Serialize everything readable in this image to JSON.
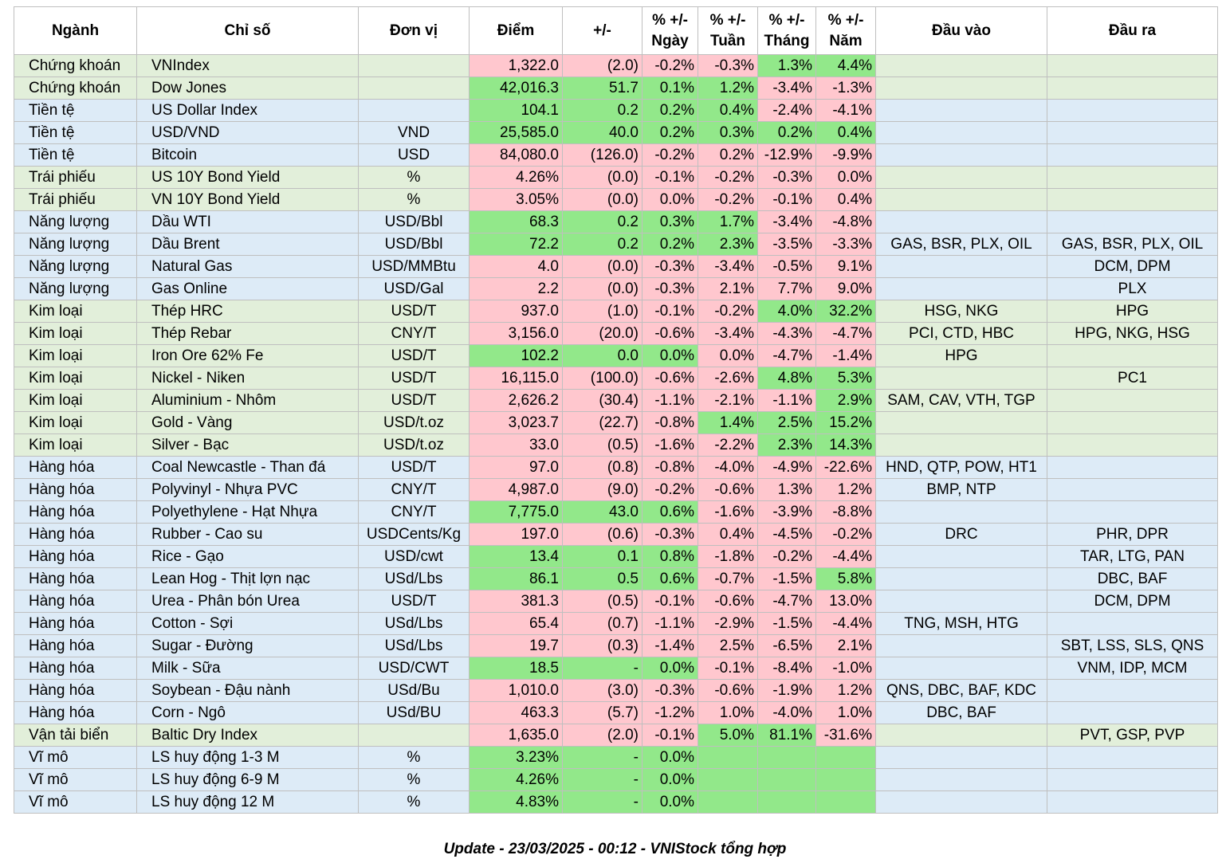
{
  "headers": {
    "nganh": "Ngành",
    "chiso": "Chỉ số",
    "donvi": "Đơn vị",
    "diem": "Điểm",
    "change": "+/-",
    "ngay": "% +/- Ngày",
    "tuan": "% +/- Tuần",
    "thang": "% +/- Tháng",
    "nam": "% +/- Năm",
    "dauvao": "Đầu vào",
    "daura": "Đầu ra"
  },
  "colors": {
    "green_row": "#e2efda",
    "blue_row": "#ddebf7",
    "positive_cell": "#92e88a",
    "negative_cell": "#ffc7ce"
  },
  "rows": [
    {
      "nganh": "Chứng khoán",
      "chiso": "VNIndex",
      "donvi": "",
      "diem": "1,322.0",
      "change": "(2.0)",
      "ngay": "-0.2%",
      "tuan": "-0.3%",
      "thang": "1.3%",
      "nam": "4.4%",
      "dauvao": "",
      "daura": "",
      "row": "g",
      "c": [
        "neg",
        "neg",
        "neg",
        "neg",
        "pos",
        "pos"
      ]
    },
    {
      "nganh": "Chứng khoán",
      "chiso": "Dow Jones",
      "donvi": "",
      "diem": "42,016.3",
      "change": "51.7",
      "ngay": "0.1%",
      "tuan": "1.2%",
      "thang": "-3.4%",
      "nam": "-1.3%",
      "dauvao": "",
      "daura": "",
      "row": "g",
      "c": [
        "pos",
        "pos",
        "pos",
        "pos",
        "neg",
        "neg"
      ]
    },
    {
      "nganh": "Tiền tệ",
      "chiso": "US Dollar Index",
      "donvi": "",
      "diem": "104.1",
      "change": "0.2",
      "ngay": "0.2%",
      "tuan": "0.4%",
      "thang": "-2.4%",
      "nam": "-4.1%",
      "dauvao": "",
      "daura": "",
      "row": "b",
      "c": [
        "pos",
        "pos",
        "pos",
        "pos",
        "neg",
        "neg"
      ]
    },
    {
      "nganh": "Tiền tệ",
      "chiso": "USD/VND",
      "donvi": "VND",
      "diem": "25,585.0",
      "change": "40.0",
      "ngay": "0.2%",
      "tuan": "0.3%",
      "thang": "0.2%",
      "nam": "0.4%",
      "dauvao": "",
      "daura": "",
      "row": "b",
      "c": [
        "pos",
        "pos",
        "pos",
        "pos",
        "pos",
        "pos"
      ]
    },
    {
      "nganh": "Tiền tệ",
      "chiso": "Bitcoin",
      "donvi": "USD",
      "diem": "84,080.0",
      "change": "(126.0)",
      "ngay": "-0.2%",
      "tuan": "0.2%",
      "thang": "-12.9%",
      "nam": "-9.9%",
      "dauvao": "",
      "daura": "",
      "row": "b",
      "c": [
        "neg",
        "neg",
        "neg",
        "neg",
        "neg",
        "neg"
      ]
    },
    {
      "nganh": "Trái phiếu",
      "chiso": "US 10Y Bond Yield",
      "donvi": "%",
      "diem": "4.26%",
      "change": "(0.0)",
      "ngay": "-0.1%",
      "tuan": "-0.2%",
      "thang": "-0.3%",
      "nam": "0.0%",
      "dauvao": "",
      "daura": "",
      "row": "g",
      "c": [
        "neg",
        "neg",
        "neg",
        "neg",
        "neg",
        "neg"
      ]
    },
    {
      "nganh": "Trái phiếu",
      "chiso": "VN 10Y Bond Yield",
      "donvi": "%",
      "diem": "3.05%",
      "change": "(0.0)",
      "ngay": "0.0%",
      "tuan": "-0.2%",
      "thang": "-0.1%",
      "nam": "0.4%",
      "dauvao": "",
      "daura": "",
      "row": "g",
      "c": [
        "neg",
        "neg",
        "neg",
        "neg",
        "neg",
        "neg"
      ]
    },
    {
      "nganh": "Năng lượng",
      "chiso": "Dầu WTI",
      "donvi": "USD/Bbl",
      "diem": "68.3",
      "change": "0.2",
      "ngay": "0.3%",
      "tuan": "1.7%",
      "thang": "-3.4%",
      "nam": "-4.8%",
      "dauvao": "",
      "daura": "",
      "row": "b",
      "c": [
        "pos",
        "pos",
        "pos",
        "pos",
        "neg",
        "neg"
      ]
    },
    {
      "nganh": "Năng lượng",
      "chiso": "Dầu Brent",
      "donvi": "USD/Bbl",
      "diem": "72.2",
      "change": "0.2",
      "ngay": "0.2%",
      "tuan": "2.3%",
      "thang": "-3.5%",
      "nam": "-3.3%",
      "dauvao": "GAS, BSR, PLX, OIL",
      "daura": "GAS, BSR, PLX, OIL",
      "row": "b",
      "c": [
        "pos",
        "pos",
        "pos",
        "pos",
        "neg",
        "neg"
      ]
    },
    {
      "nganh": "Năng lượng",
      "chiso": "Natural Gas",
      "donvi": "USD/MMBtu",
      "diem": "4.0",
      "change": "(0.0)",
      "ngay": "-0.3%",
      "tuan": "-3.4%",
      "thang": "-0.5%",
      "nam": "9.1%",
      "dauvao": "",
      "daura": "DCM, DPM",
      "row": "b",
      "c": [
        "neg",
        "neg",
        "neg",
        "neg",
        "neg",
        "neg"
      ]
    },
    {
      "nganh": "Năng lượng",
      "chiso": "Gas Online",
      "donvi": "USD/Gal",
      "diem": "2.2",
      "change": "(0.0)",
      "ngay": "-0.3%",
      "tuan": "2.1%",
      "thang": "7.7%",
      "nam": "9.0%",
      "dauvao": "",
      "daura": "PLX",
      "row": "b",
      "c": [
        "neg",
        "neg",
        "neg",
        "neg",
        "neg",
        "neg"
      ]
    },
    {
      "nganh": "Kim loại",
      "chiso": "Thép HRC",
      "donvi": "USD/T",
      "diem": "937.0",
      "change": "(1.0)",
      "ngay": "-0.1%",
      "tuan": "-0.2%",
      "thang": "4.0%",
      "nam": "32.2%",
      "dauvao": "HSG, NKG",
      "daura": "HPG",
      "row": "g",
      "c": [
        "neg",
        "neg",
        "neg",
        "neg",
        "pos",
        "pos"
      ]
    },
    {
      "nganh": "Kim loại",
      "chiso": "Thép Rebar",
      "donvi": "CNY/T",
      "diem": "3,156.0",
      "change": "(20.0)",
      "ngay": "-0.6%",
      "tuan": "-3.4%",
      "thang": "-4.3%",
      "nam": "-4.7%",
      "dauvao": "PCI, CTD, HBC",
      "daura": "HPG, NKG, HSG",
      "row": "g",
      "c": [
        "neg",
        "neg",
        "neg",
        "neg",
        "neg",
        "neg"
      ]
    },
    {
      "nganh": "Kim loại",
      "chiso": "Iron Ore 62% Fe",
      "donvi": "USD/T",
      "diem": "102.2",
      "change": "0.0",
      "ngay": "0.0%",
      "tuan": "0.0%",
      "thang": "-4.7%",
      "nam": "-1.4%",
      "dauvao": "HPG",
      "daura": "",
      "row": "g",
      "c": [
        "pos",
        "pos",
        "pos",
        "neg",
        "neg",
        "neg"
      ]
    },
    {
      "nganh": "Kim loại",
      "chiso": "Nickel - Niken",
      "donvi": "USD/T",
      "diem": "16,115.0",
      "change": "(100.0)",
      "ngay": "-0.6%",
      "tuan": "-2.6%",
      "thang": "4.8%",
      "nam": "5.3%",
      "dauvao": "",
      "daura": "PC1",
      "row": "g",
      "c": [
        "neg",
        "neg",
        "neg",
        "neg",
        "pos",
        "pos"
      ]
    },
    {
      "nganh": "Kim loại",
      "chiso": "Aluminium - Nhôm",
      "donvi": "USD/T",
      "diem": "2,626.2",
      "change": "(30.4)",
      "ngay": "-1.1%",
      "tuan": "-2.1%",
      "thang": "-1.1%",
      "nam": "2.9%",
      "dauvao": "SAM, CAV, VTH, TGP",
      "daura": "",
      "row": "g",
      "c": [
        "neg",
        "neg",
        "neg",
        "neg",
        "neg",
        "pos"
      ]
    },
    {
      "nganh": "Kim loại",
      "chiso": "Gold - Vàng",
      "donvi": "USD/t.oz",
      "diem": "3,023.7",
      "change": "(22.7)",
      "ngay": "-0.8%",
      "tuan": "1.4%",
      "thang": "2.5%",
      "nam": "15.2%",
      "dauvao": "",
      "daura": "",
      "row": "g",
      "c": [
        "neg",
        "neg",
        "neg",
        "pos",
        "pos",
        "pos"
      ]
    },
    {
      "nganh": "Kim loại",
      "chiso": "Silver - Bạc",
      "donvi": "USD/t.oz",
      "diem": "33.0",
      "change": "(0.5)",
      "ngay": "-1.6%",
      "tuan": "-2.2%",
      "thang": "2.3%",
      "nam": "14.3%",
      "dauvao": "",
      "daura": "",
      "row": "g",
      "c": [
        "neg",
        "neg",
        "neg",
        "neg",
        "pos",
        "pos"
      ]
    },
    {
      "nganh": "Hàng hóa",
      "chiso": "Coal Newcastle - Than đá",
      "donvi": "USD/T",
      "diem": "97.0",
      "change": "(0.8)",
      "ngay": "-0.8%",
      "tuan": "-4.0%",
      "thang": "-4.9%",
      "nam": "-22.6%",
      "dauvao": "HND, QTP, POW, HT1",
      "daura": "",
      "row": "b",
      "c": [
        "neg",
        "neg",
        "neg",
        "neg",
        "neg",
        "neg"
      ]
    },
    {
      "nganh": "Hàng hóa",
      "chiso": "Polyvinyl - Nhựa PVC",
      "donvi": "CNY/T",
      "diem": "4,987.0",
      "change": "(9.0)",
      "ngay": "-0.2%",
      "tuan": "-0.6%",
      "thang": "1.3%",
      "nam": "1.2%",
      "dauvao": "BMP, NTP",
      "daura": "",
      "row": "b",
      "c": [
        "neg",
        "neg",
        "neg",
        "neg",
        "neg",
        "neg"
      ]
    },
    {
      "nganh": "Hàng hóa",
      "chiso": "Polyethylene - Hạt Nhựa",
      "donvi": "CNY/T",
      "diem": "7,775.0",
      "change": "43.0",
      "ngay": "0.6%",
      "tuan": "-1.6%",
      "thang": "-3.9%",
      "nam": "-8.8%",
      "dauvao": "",
      "daura": "",
      "row": "b",
      "c": [
        "pos",
        "pos",
        "pos",
        "neg",
        "neg",
        "neg"
      ]
    },
    {
      "nganh": "Hàng hóa",
      "chiso": "Rubber - Cao su",
      "donvi": "USDCents/Kg",
      "diem": "197.0",
      "change": "(0.6)",
      "ngay": "-0.3%",
      "tuan": "0.4%",
      "thang": "-4.5%",
      "nam": "-0.2%",
      "dauvao": "DRC",
      "daura": "PHR, DPR",
      "row": "b",
      "c": [
        "neg",
        "neg",
        "neg",
        "neg",
        "neg",
        "neg"
      ]
    },
    {
      "nganh": "Hàng hóa",
      "chiso": "Rice - Gạo",
      "donvi": "USD/cwt",
      "diem": "13.4",
      "change": "0.1",
      "ngay": "0.8%",
      "tuan": "-1.8%",
      "thang": "-0.2%",
      "nam": "-4.4%",
      "dauvao": "",
      "daura": "TAR, LTG, PAN",
      "row": "b",
      "c": [
        "pos",
        "pos",
        "pos",
        "neg",
        "neg",
        "neg"
      ]
    },
    {
      "nganh": "Hàng hóa",
      "chiso": "Lean Hog - Thịt lợn nạc",
      "donvi": "USd/Lbs",
      "diem": "86.1",
      "change": "0.5",
      "ngay": "0.6%",
      "tuan": "-0.7%",
      "thang": "-1.5%",
      "nam": "5.8%",
      "dauvao": "",
      "daura": "DBC, BAF",
      "row": "b",
      "c": [
        "pos",
        "pos",
        "pos",
        "neg",
        "neg",
        "pos"
      ]
    },
    {
      "nganh": "Hàng hóa",
      "chiso": "Urea - Phân bón Urea",
      "donvi": "USD/T",
      "diem": "381.3",
      "change": "(0.5)",
      "ngay": "-0.1%",
      "tuan": "-0.6%",
      "thang": "-4.7%",
      "nam": "13.0%",
      "dauvao": "",
      "daura": "DCM, DPM",
      "row": "b",
      "c": [
        "neg",
        "neg",
        "neg",
        "neg",
        "neg",
        "neg"
      ]
    },
    {
      "nganh": "Hàng hóa",
      "chiso": "Cotton - Sợi",
      "donvi": "USd/Lbs",
      "diem": "65.4",
      "change": "(0.7)",
      "ngay": "-1.1%",
      "tuan": "-2.9%",
      "thang": "-1.5%",
      "nam": "-4.4%",
      "dauvao": "TNG, MSH, HTG",
      "daura": "",
      "row": "b",
      "c": [
        "neg",
        "neg",
        "neg",
        "neg",
        "neg",
        "neg"
      ]
    },
    {
      "nganh": "Hàng hóa",
      "chiso": "Sugar - Đường",
      "donvi": "USd/Lbs",
      "diem": "19.7",
      "change": "(0.3)",
      "ngay": "-1.4%",
      "tuan": "2.5%",
      "thang": "-6.5%",
      "nam": "2.1%",
      "dauvao": "",
      "daura": "SBT, LSS, SLS, QNS",
      "row": "b",
      "c": [
        "neg",
        "neg",
        "neg",
        "neg",
        "neg",
        "neg"
      ]
    },
    {
      "nganh": "Hàng hóa",
      "chiso": "Milk - Sữa",
      "donvi": "USD/CWT",
      "diem": "18.5",
      "change": "-",
      "ngay": "0.0%",
      "tuan": "-0.1%",
      "thang": "-8.4%",
      "nam": "-1.0%",
      "dauvao": "",
      "daura": "VNM, IDP, MCM",
      "row": "b",
      "c": [
        "pos",
        "pos",
        "pos",
        "neg",
        "neg",
        "neg"
      ]
    },
    {
      "nganh": "Hàng hóa",
      "chiso": "Soybean - Đậu nành",
      "donvi": "USd/Bu",
      "diem": "1,010.0",
      "change": "(3.0)",
      "ngay": "-0.3%",
      "tuan": "-0.6%",
      "thang": "-1.9%",
      "nam": "1.2%",
      "dauvao": "QNS, DBC, BAF, KDC",
      "daura": "",
      "row": "b",
      "c": [
        "neg",
        "neg",
        "neg",
        "neg",
        "neg",
        "neg"
      ]
    },
    {
      "nganh": "Hàng hóa",
      "chiso": "Corn - Ngô",
      "donvi": "USd/BU",
      "diem": "463.3",
      "change": "(5.7)",
      "ngay": "-1.2%",
      "tuan": "1.0%",
      "thang": "-4.0%",
      "nam": "1.0%",
      "dauvao": "DBC, BAF",
      "daura": "",
      "row": "b",
      "c": [
        "neg",
        "neg",
        "neg",
        "neg",
        "neg",
        "neg"
      ]
    },
    {
      "nganh": "Vận tải biển",
      "chiso": "Baltic Dry Index",
      "donvi": "",
      "diem": "1,635.0",
      "change": "(2.0)",
      "ngay": "-0.1%",
      "tuan": "5.0%",
      "thang": "81.1%",
      "nam": "-31.6%",
      "dauvao": "",
      "daura": "PVT, GSP, PVP",
      "row": "g",
      "c": [
        "neg",
        "neg",
        "neg",
        "pos",
        "pos",
        "neg"
      ]
    },
    {
      "nganh": "Vĩ mô",
      "chiso": "LS huy động 1-3 M",
      "donvi": "%",
      "diem": "3.23%",
      "change": "-",
      "ngay": "0.0%",
      "tuan": "",
      "thang": "",
      "nam": "",
      "dauvao": "",
      "daura": "",
      "row": "b",
      "c": [
        "pos",
        "pos",
        "pos",
        "pos",
        "pos",
        "pos"
      ]
    },
    {
      "nganh": "Vĩ mô",
      "chiso": "LS huy động 6-9 M",
      "donvi": "%",
      "diem": "4.26%",
      "change": "-",
      "ngay": "0.0%",
      "tuan": "",
      "thang": "",
      "nam": "",
      "dauvao": "",
      "daura": "",
      "row": "b",
      "c": [
        "pos",
        "pos",
        "pos",
        "pos",
        "pos",
        "pos"
      ]
    },
    {
      "nganh": "Vĩ mô",
      "chiso": "LS huy động 12 M",
      "donvi": "%",
      "diem": "4.83%",
      "change": "-",
      "ngay": "0.0%",
      "tuan": "",
      "thang": "",
      "nam": "",
      "dauvao": "",
      "daura": "",
      "row": "b",
      "c": [
        "pos",
        "pos",
        "pos",
        "pos",
        "pos",
        "pos"
      ]
    }
  ],
  "footer": "Update - 23/03/2025 - 00:12 - VNIStock tổng hợp"
}
